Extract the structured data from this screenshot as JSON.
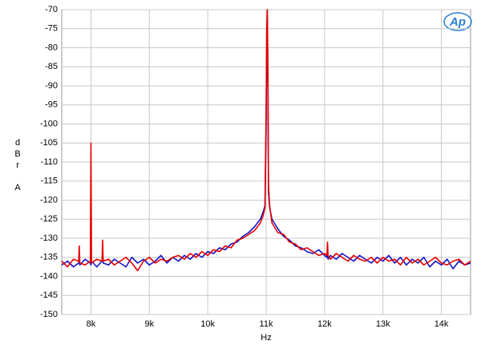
{
  "chart_data": {
    "type": "line",
    "y_label": "dBr A",
    "x_label": "Hz",
    "logo": "Ap",
    "xlim": [
      7500,
      14500
    ],
    "ylim": [
      -150,
      -70
    ],
    "xticks": [
      {
        "value": 8000,
        "label": "8k"
      },
      {
        "value": 9000,
        "label": "9k"
      },
      {
        "value": 10000,
        "label": "10k"
      },
      {
        "value": 11000,
        "label": "11k"
      },
      {
        "value": 12000,
        "label": "12k"
      },
      {
        "value": 13000,
        "label": "13k"
      },
      {
        "value": 14000,
        "label": "14k"
      }
    ],
    "yticks": [
      -70,
      -75,
      -80,
      -85,
      -90,
      -95,
      -100,
      -105,
      -110,
      -115,
      -120,
      -125,
      -130,
      -135,
      -140,
      -145,
      -150
    ],
    "grid": true,
    "x": [
      7500,
      7600,
      7700,
      7790,
      7800,
      7810,
      7900,
      7990,
      8000,
      8010,
      8100,
      8190,
      8200,
      8210,
      8300,
      8400,
      8500,
      8600,
      8700,
      8800,
      8900,
      9000,
      9100,
      9200,
      9300,
      9400,
      9500,
      9600,
      9700,
      9800,
      9900,
      10000,
      10100,
      10200,
      10300,
      10400,
      10500,
      10600,
      10700,
      10800,
      10900,
      10950,
      10980,
      11000,
      11010,
      11020,
      11030,
      11040,
      11060,
      11100,
      11200,
      11300,
      11400,
      11500,
      11600,
      11700,
      11800,
      11900,
      12000,
      12040,
      12050,
      12060,
      12100,
      12200,
      12300,
      12400,
      12500,
      12600,
      12700,
      12800,
      12900,
      13000,
      13100,
      13200,
      13300,
      13400,
      13500,
      13600,
      13700,
      13800,
      13900,
      14000,
      14100,
      14200,
      14300,
      14400,
      14500
    ],
    "series": [
      {
        "color": "#1414c8",
        "values": [
          -137,
          -136,
          -137.5,
          -136.5,
          -136,
          -137,
          -135.5,
          -136.5,
          -137,
          -136,
          -137.5,
          -136,
          -135,
          -136.5,
          -137,
          -135.5,
          -136.5,
          -137.5,
          -135,
          -136.5,
          -135.5,
          -137,
          -136,
          -134.5,
          -136.5,
          -135,
          -136,
          -134.5,
          -135.5,
          -134,
          -135,
          -133.5,
          -134,
          -132.5,
          -133,
          -131.5,
          -131,
          -129.5,
          -128.5,
          -127,
          -125,
          -123,
          -121.5,
          -100,
          -80,
          -72,
          -90,
          -118,
          -122,
          -125,
          -127.5,
          -129.5,
          -130.5,
          -132,
          -132.5,
          -133.5,
          -134,
          -133,
          -134.5,
          -135,
          -134,
          -135.5,
          -134.5,
          -135.5,
          -134,
          -135,
          -136,
          -134.5,
          -135.5,
          -136.5,
          -135,
          -136,
          -134.5,
          -136.5,
          -135,
          -137,
          -135.5,
          -136.5,
          -135,
          -137.5,
          -136,
          -137,
          -135.5,
          -138,
          -136,
          -137,
          -136.5
        ]
      },
      {
        "color": "#e60000",
        "values": [
          -136,
          -137.5,
          -135.5,
          -136,
          -132,
          -136.5,
          -137,
          -136,
          -105,
          -136.5,
          -135.5,
          -136,
          -130.5,
          -136,
          -135.5,
          -137,
          -136,
          -135,
          -136.5,
          -138.5,
          -136,
          -135,
          -136.5,
          -135.5,
          -136,
          -135,
          -134.5,
          -135.5,
          -134,
          -135,
          -133.5,
          -134.5,
          -133,
          -133.5,
          -132,
          -132.5,
          -130.5,
          -130,
          -129,
          -128,
          -126,
          -124,
          -122,
          -95,
          -75,
          -70,
          -85,
          -116,
          -121.5,
          -126,
          -128.5,
          -129,
          -131,
          -131.5,
          -133,
          -132.5,
          -133.5,
          -134.5,
          -134,
          -134.5,
          -131,
          -134.5,
          -135.5,
          -134,
          -135,
          -136,
          -134.5,
          -135.5,
          -136,
          -135,
          -136.5,
          -135,
          -136,
          -135.5,
          -137,
          -135,
          -136.5,
          -135.5,
          -137,
          -136,
          -135,
          -136.5,
          -137,
          -136,
          -135.5,
          -137,
          -136
        ]
      }
    ]
  }
}
